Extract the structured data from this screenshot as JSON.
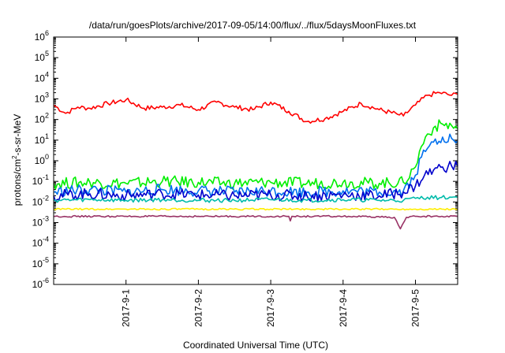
{
  "chart_data": {
    "type": "line",
    "title": "/data/run/goesPlots/archive/2017-09-05/14:00/flux/../flux/5daysMoonFluxes.txt",
    "xlabel": "Coordinated Universal Time (UTC)",
    "ylabel": {
      "prefix": "protons/cm",
      "sup": "2",
      "suffix": "-s-sr-MeV"
    },
    "y_scale": "log",
    "ylim": [
      1e-06,
      1000000.0
    ],
    "y_ticks": [
      {
        "value": 1e-06,
        "exp": "-6"
      },
      {
        "value": 1e-05,
        "exp": "-5"
      },
      {
        "value": 0.0001,
        "exp": "-4"
      },
      {
        "value": 0.001,
        "exp": "-3"
      },
      {
        "value": 0.01,
        "exp": "-2"
      },
      {
        "value": 0.1,
        "exp": "-1"
      },
      {
        "value": 1,
        "exp": "0"
      },
      {
        "value": 10,
        "exp": "1"
      },
      {
        "value": 100,
        "exp": "2"
      },
      {
        "value": 1000,
        "exp": "3"
      },
      {
        "value": 10000,
        "exp": "4"
      },
      {
        "value": 100000,
        "exp": "5"
      },
      {
        "value": 1000000,
        "exp": "6"
      }
    ],
    "y_tick_base": "10",
    "xlim": [
      "2017-08-31 00:00",
      "2017-09-05 14:00"
    ],
    "x_ticks": [
      "2017-9-1",
      "2017-9-2",
      "2017-9-3",
      "2017-9-4",
      "2017-9-5"
    ],
    "x_tick_dates": [
      "2017-09-01 00:00",
      "2017-09-02 00:00",
      "2017-09-03 00:00",
      "2017-09-04 00:00",
      "2017-09-05 00:00"
    ],
    "grid": false,
    "legend": "none",
    "series": [
      {
        "color": "#ff0000",
        "x": [
          "2017-08-31 00:00",
          "2017-08-31 04:00",
          "2017-08-31 08:00",
          "2017-08-31 12:00",
          "2017-08-31 18:00",
          "2017-09-01 00:00",
          "2017-09-01 06:00",
          "2017-09-01 12:00",
          "2017-09-01 18:00",
          "2017-09-02 00:00",
          "2017-09-02 06:00",
          "2017-09-02 12:00",
          "2017-09-02 18:00",
          "2017-09-03 00:00",
          "2017-09-03 06:00",
          "2017-09-03 12:00",
          "2017-09-03 18:00",
          "2017-09-04 00:00",
          "2017-09-04 06:00",
          "2017-09-04 12:00",
          "2017-09-04 18:00",
          "2017-09-04 20:00",
          "2017-09-05 00:00",
          "2017-09-05 04:00",
          "2017-09-05 08:00",
          "2017-09-05 12:00",
          "2017-09-05 14:00"
        ],
        "values": [
          500,
          200,
          400,
          350,
          600,
          900,
          350,
          400,
          500,
          300,
          700,
          400,
          300,
          700,
          250,
          80,
          110,
          250,
          600,
          300,
          180,
          150,
          500,
          1500,
          2000,
          1500,
          1700
        ]
      },
      {
        "color": "#00ee00",
        "x": [
          "2017-08-31 00:00",
          "2017-08-31 12:00",
          "2017-09-01 00:00",
          "2017-09-01 12:00",
          "2017-09-02 00:00",
          "2017-09-02 12:00",
          "2017-09-03 00:00",
          "2017-09-03 12:00",
          "2017-09-04 00:00",
          "2017-09-04 12:00",
          "2017-09-04 20:00",
          "2017-09-05 00:00",
          "2017-09-05 02:00",
          "2017-09-05 04:00",
          "2017-09-05 06:00",
          "2017-09-05 09:00",
          "2017-09-05 12:00",
          "2017-09-05 14:00"
        ],
        "values": [
          0.08,
          0.09,
          0.08,
          0.1,
          0.09,
          0.08,
          0.09,
          0.08,
          0.09,
          0.08,
          0.09,
          0.5,
          5,
          20,
          40,
          60,
          50,
          35
        ]
      },
      {
        "color": "#0070ee",
        "x": [
          "2017-08-31 00:00",
          "2017-08-31 12:00",
          "2017-09-01 00:00",
          "2017-09-01 12:00",
          "2017-09-02 00:00",
          "2017-09-02 12:00",
          "2017-09-03 00:00",
          "2017-09-03 12:00",
          "2017-09-04 00:00",
          "2017-09-04 12:00",
          "2017-09-04 20:00",
          "2017-09-05 00:00",
          "2017-09-05 02:00",
          "2017-09-05 04:00",
          "2017-09-05 06:00",
          "2017-09-05 09:00",
          "2017-09-05 12:00",
          "2017-09-05 14:00"
        ],
        "values": [
          0.03,
          0.04,
          0.03,
          0.04,
          0.035,
          0.03,
          0.035,
          0.03,
          0.035,
          0.03,
          0.035,
          0.2,
          1.5,
          4,
          8,
          14,
          12,
          9
        ]
      },
      {
        "color": "#0000cc",
        "x": [
          "2017-08-31 00:00",
          "2017-08-31 12:00",
          "2017-09-01 00:00",
          "2017-09-01 12:00",
          "2017-09-02 00:00",
          "2017-09-02 12:00",
          "2017-09-03 00:00",
          "2017-09-03 12:00",
          "2017-09-04 00:00",
          "2017-09-04 12:00",
          "2017-09-04 20:00",
          "2017-09-05 00:00",
          "2017-09-05 03:00",
          "2017-09-05 06:00",
          "2017-09-05 09:00",
          "2017-09-05 12:00",
          "2017-09-05 14:00"
        ],
        "values": [
          0.02,
          0.025,
          0.02,
          0.025,
          0.022,
          0.02,
          0.022,
          0.02,
          0.022,
          0.02,
          0.03,
          0.06,
          0.2,
          0.35,
          0.5,
          0.55,
          0.55
        ]
      },
      {
        "color": "#00bbaa",
        "x": [
          "2017-08-31 00:00",
          "2017-08-31 12:00",
          "2017-09-01 00:00",
          "2017-09-01 12:00",
          "2017-09-02 00:00",
          "2017-09-02 12:00",
          "2017-09-03 00:00",
          "2017-09-03 12:00",
          "2017-09-04 00:00",
          "2017-09-04 12:00",
          "2017-09-04 20:00",
          "2017-09-05 00:00",
          "2017-09-05 04:00",
          "2017-09-05 08:00",
          "2017-09-05 12:00",
          "2017-09-05 14:00"
        ],
        "values": [
          0.012,
          0.013,
          0.012,
          0.013,
          0.012,
          0.012,
          0.013,
          0.012,
          0.013,
          0.012,
          0.012,
          0.015,
          0.017,
          0.016,
          0.017,
          0.017
        ]
      },
      {
        "color": "#ffee00",
        "x": [
          "2017-08-31 00:00",
          "2017-09-01 00:00",
          "2017-09-02 00:00",
          "2017-09-03 00:00",
          "2017-09-04 00:00",
          "2017-09-05 00:00",
          "2017-09-05 14:00"
        ],
        "values": [
          0.0045,
          0.0045,
          0.0045,
          0.0045,
          0.0045,
          0.0045,
          0.0045
        ]
      },
      {
        "color": "#993366",
        "x": [
          "2017-08-31 00:00",
          "2017-09-01 00:00",
          "2017-09-02 00:00",
          "2017-09-02 14:00",
          "2017-09-03 00:00",
          "2017-09-03 06:00",
          "2017-09-03 06:30",
          "2017-09-03 07:00",
          "2017-09-04 00:00",
          "2017-09-04 17:00",
          "2017-09-04 19:00",
          "2017-09-04 21:00",
          "2017-09-05 00:00",
          "2017-09-05 14:00"
        ],
        "values": [
          0.002,
          0.002,
          0.002,
          0.002,
          0.002,
          0.002,
          0.0012,
          0.002,
          0.002,
          0.0018,
          0.0005,
          0.0018,
          0.002,
          0.002
        ]
      }
    ]
  }
}
